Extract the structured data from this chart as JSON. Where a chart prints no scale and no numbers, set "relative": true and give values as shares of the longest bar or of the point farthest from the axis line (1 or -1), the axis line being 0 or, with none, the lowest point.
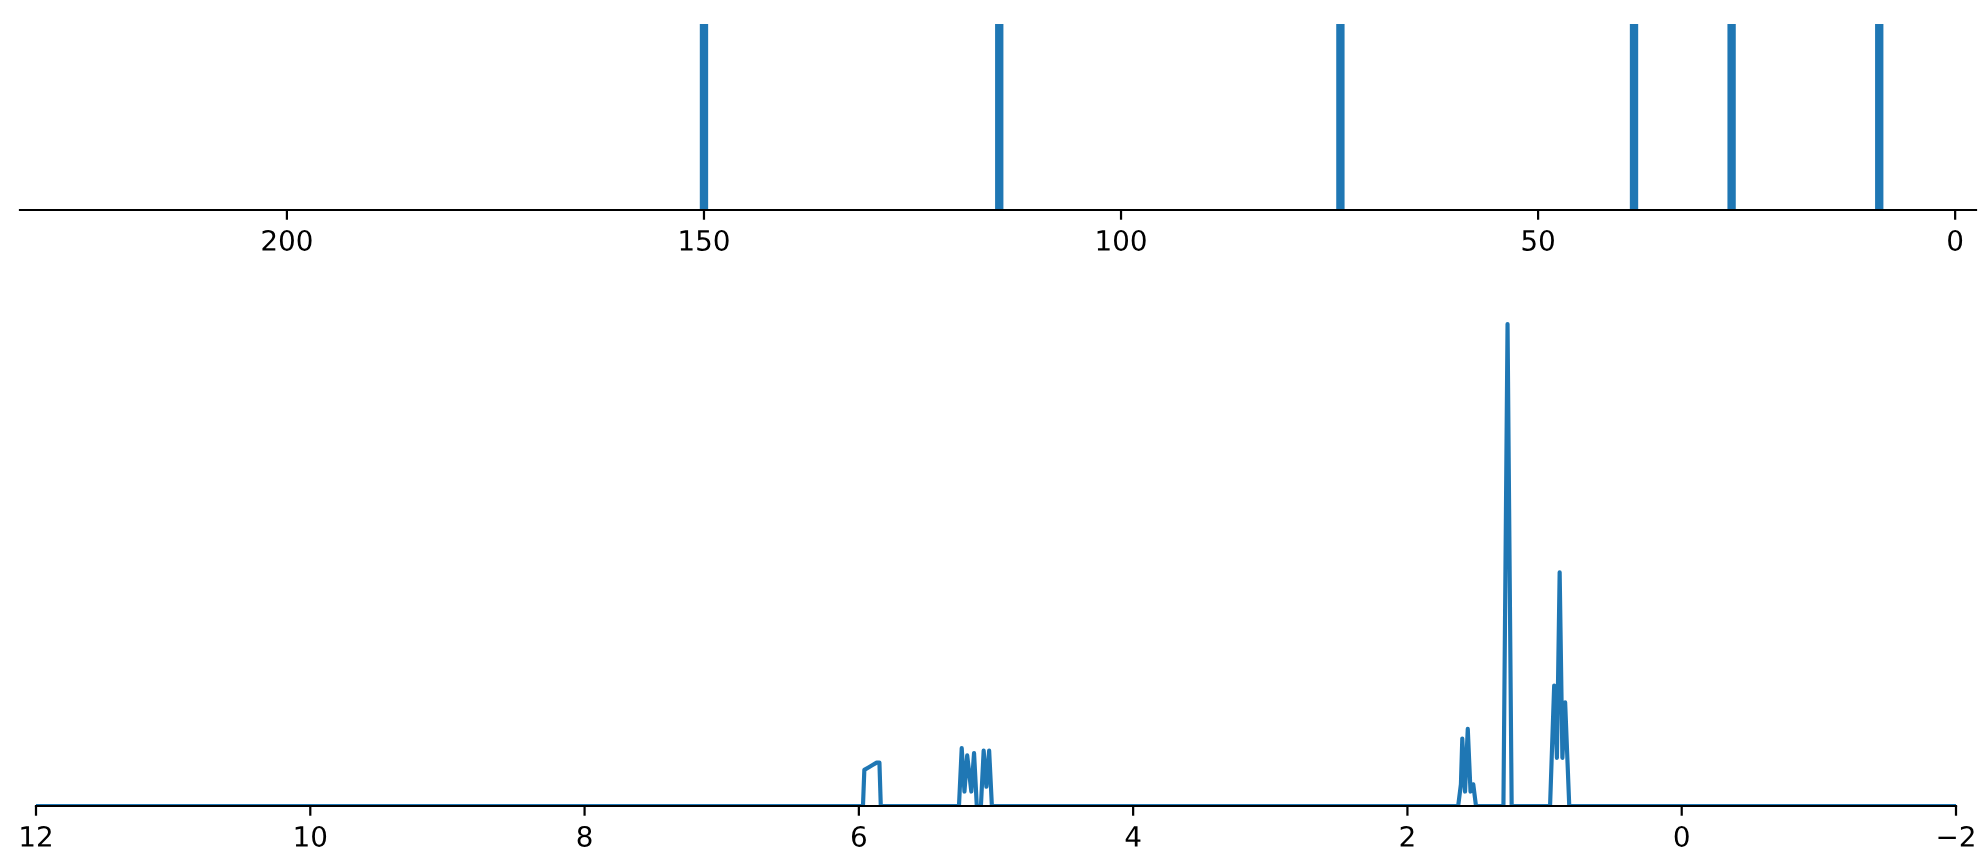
{
  "chart_data": [
    {
      "type": "bar",
      "relative": true,
      "x": [
        150,
        114.6,
        73.7,
        38.5,
        26.8,
        9.1
      ],
      "values": [
        1,
        1,
        1,
        1,
        1,
        1
      ],
      "color": "#1f77b4",
      "xlim": [
        232,
        -2.5
      ],
      "xticks": [
        200,
        150,
        100,
        50,
        0
      ],
      "tick_labels": "x",
      "grid": false,
      "legend": false
    },
    {
      "type": "line",
      "relative": true,
      "color": "#1f77b4",
      "x": [
        12.0,
        6.0,
        5.97,
        5.96,
        5.93,
        5.9,
        5.87,
        5.85,
        5.84,
        5.27,
        5.25,
        5.23,
        5.21,
        5.18,
        5.16,
        5.14,
        5.11,
        5.09,
        5.07,
        5.05,
        5.03,
        1.63,
        1.61,
        1.6,
        1.58,
        1.56,
        1.54,
        1.52,
        1.5,
        1.3,
        1.27,
        1.24,
        0.96,
        0.93,
        0.91,
        0.89,
        0.87,
        0.85,
        0.82,
        -2.0
      ],
      "values": [
        0,
        0,
        0,
        0.075,
        0.08,
        0.085,
        0.09,
        0.09,
        0,
        0,
        0.12,
        0.03,
        0.105,
        0.03,
        0.11,
        0,
        0,
        0.115,
        0.04,
        0.115,
        0,
        0,
        0.045,
        0.14,
        0.03,
        0.16,
        0.03,
        0.045,
        0,
        0,
        1,
        0,
        0,
        0.25,
        0.1,
        0.485,
        0.1,
        0.215,
        0,
        0
      ],
      "xlim": [
        12,
        -2
      ],
      "xticks": [
        12,
        10,
        8,
        6,
        4,
        2,
        0,
        {
          "value": -2,
          "label": "−2"
        }
      ],
      "tick_labels": "x",
      "grid": false,
      "legend": false
    }
  ]
}
